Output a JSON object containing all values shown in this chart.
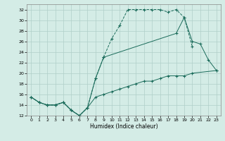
{
  "xlabel": "Humidex (Indice chaleur)",
  "bg_color": "#d4ece6",
  "grid_color": "#b0cfc8",
  "line_color": "#1a6b5a",
  "xlim": [
    -0.5,
    23.5
  ],
  "ylim": [
    12,
    33
  ],
  "xticks": [
    0,
    1,
    2,
    3,
    4,
    5,
    6,
    7,
    8,
    9,
    10,
    11,
    12,
    13,
    14,
    15,
    16,
    17,
    18,
    19,
    20,
    21,
    22,
    23
  ],
  "yticks": [
    12,
    14,
    16,
    18,
    20,
    22,
    24,
    26,
    28,
    30,
    32
  ],
  "line1_x": [
    0,
    1,
    2,
    3,
    4,
    5,
    6,
    7,
    8,
    9,
    10,
    11,
    12,
    13,
    14,
    15,
    16,
    17,
    18,
    19,
    20
  ],
  "line1_y": [
    15.5,
    14.5,
    14.0,
    14.0,
    14.5,
    13.0,
    12.0,
    13.5,
    19.0,
    23.0,
    26.5,
    29.0,
    32.0,
    32.0,
    32.0,
    32.0,
    32.0,
    31.5,
    32.0,
    30.5,
    25.0
  ],
  "line2_x": [
    0,
    1,
    2,
    3,
    4,
    5,
    6,
    7,
    8,
    9,
    10,
    11,
    12,
    13,
    14,
    15,
    16,
    17,
    18,
    19,
    20,
    23
  ],
  "line2_y": [
    15.5,
    14.5,
    14.0,
    14.0,
    14.5,
    13.0,
    12.0,
    13.5,
    15.5,
    16.0,
    16.5,
    17.0,
    17.5,
    18.0,
    18.5,
    18.5,
    19.0,
    19.5,
    19.5,
    19.5,
    20.0,
    20.5
  ],
  "line3_x": [
    0,
    1,
    2,
    3,
    4,
    5,
    6,
    7,
    8,
    9,
    18,
    19,
    20,
    21,
    22,
    23
  ],
  "line3_y": [
    15.5,
    14.5,
    14.0,
    14.0,
    14.5,
    13.0,
    12.0,
    13.5,
    19.0,
    23.0,
    27.5,
    30.5,
    26.0,
    25.5,
    22.5,
    20.5
  ]
}
